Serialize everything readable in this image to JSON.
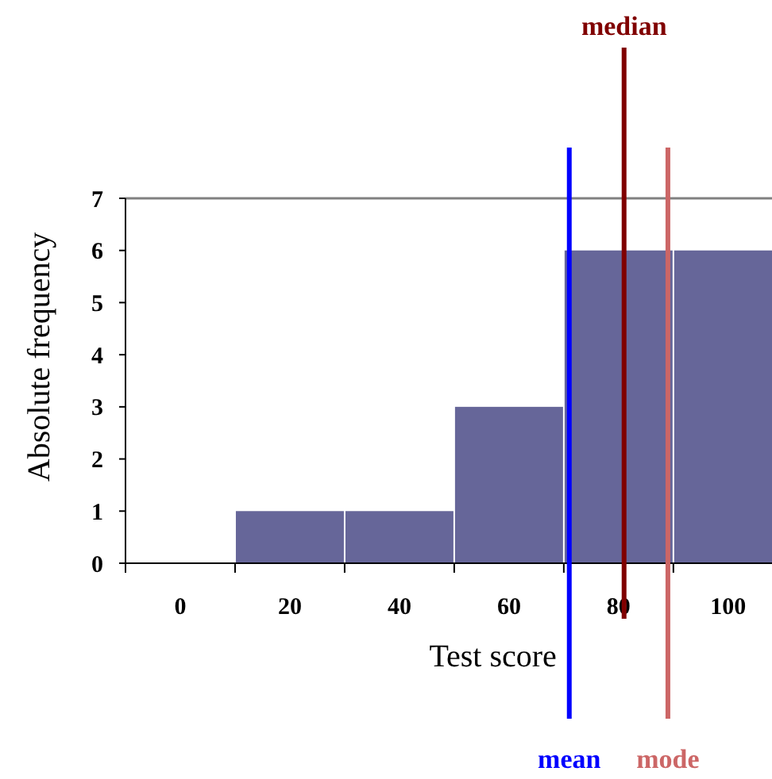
{
  "chart_data": {
    "type": "bar",
    "xlabel": "Test score",
    "ylabel": "Absolute frequency",
    "x": [
      0,
      20,
      40,
      60,
      80,
      100
    ],
    "values": [
      0,
      1,
      1,
      3,
      6,
      6
    ],
    "color": "#666699",
    "xlim": [
      -10,
      108
    ],
    "xticks": [
      0,
      20,
      40,
      60,
      80,
      100
    ],
    "ylim": [
      0,
      7
    ],
    "yticks": [
      0,
      1,
      2,
      3,
      4,
      5,
      6,
      7
    ],
    "ref_lines": [
      {
        "axis": "x",
        "value": 71,
        "label": "mean",
        "color": "#0000ff"
      },
      {
        "axis": "x",
        "value": 81,
        "label": "median",
        "color": "#800000"
      },
      {
        "axis": "x",
        "value": 89,
        "label": "mode",
        "color": "#cc6666"
      }
    ]
  }
}
